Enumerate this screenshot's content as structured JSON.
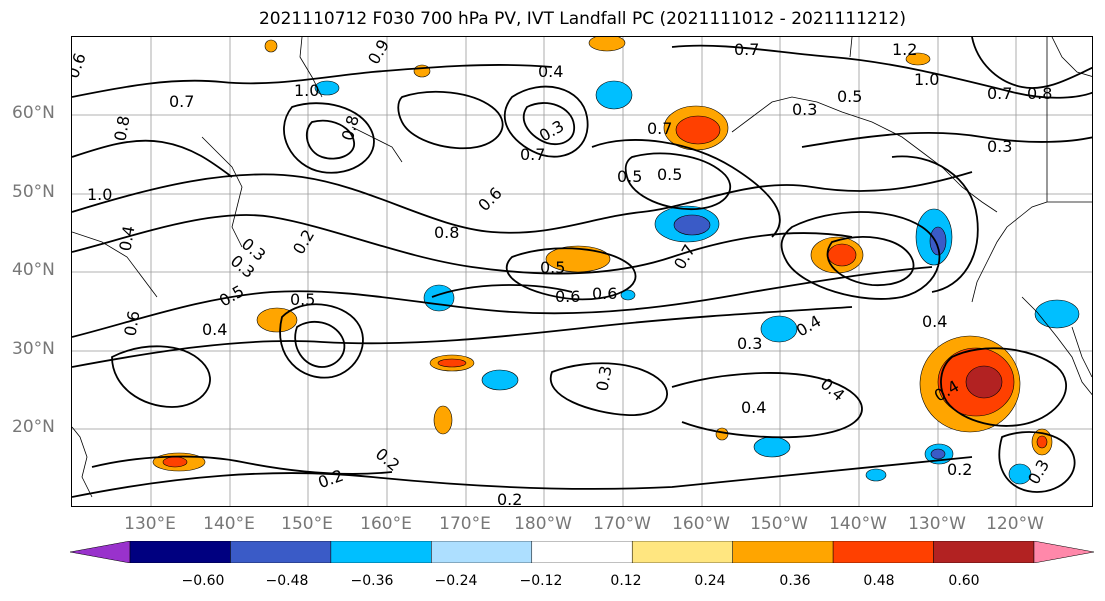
{
  "title": "2021110712 F030 700 hPa PV, IVT Landfall PC (2021111012 - 2021111212)",
  "lat_labels": [
    "60°N",
    "50°N",
    "40°N",
    "30°N",
    "20°N"
  ],
  "lon_labels": [
    "130°E",
    "140°E",
    "150°E",
    "160°E",
    "170°E",
    "180°W",
    "170°W",
    "160°W",
    "150°W",
    "140°W",
    "130°W",
    "120°W"
  ],
  "colorbar": {
    "ticks": [
      "−0.60",
      "−0.48",
      "−0.36",
      "−0.24",
      "−0.12",
      "0.12",
      "0.24",
      "0.36",
      "0.48",
      "0.60"
    ],
    "colors": [
      "#9932CC",
      "#000080",
      "#3A5BC7",
      "#00BFFF",
      "#ADDFFF",
      "#FFFFFF",
      "#FFE680",
      "#FFA500",
      "#FF4000",
      "#B22222",
      "#FF88AA"
    ]
  },
  "contour_labels": [
    "0.7",
    "0.6",
    "0.8",
    "1.0",
    "0.8",
    "0.9",
    "0.4",
    "0.3",
    "1.2",
    "1.0",
    "0.7",
    "0.8",
    "0.5",
    "0.3",
    "0.7",
    "0.5",
    "0.5",
    "0.6",
    "0.8",
    "0.7",
    "1.0",
    "0.4",
    "0.2",
    "0.3",
    "0.5",
    "0.4",
    "0.6",
    "0.5",
    "0.6",
    "0.6",
    "0.3",
    "0.5",
    "0.7",
    "0.4",
    "0.3",
    "0.4",
    "0.3",
    "0.4",
    "0.4",
    "0.2",
    "0.2",
    "0.2",
    "0.4",
    "0.3",
    "0.2",
    "0.3",
    "0.7"
  ],
  "legend_on_map": false
}
